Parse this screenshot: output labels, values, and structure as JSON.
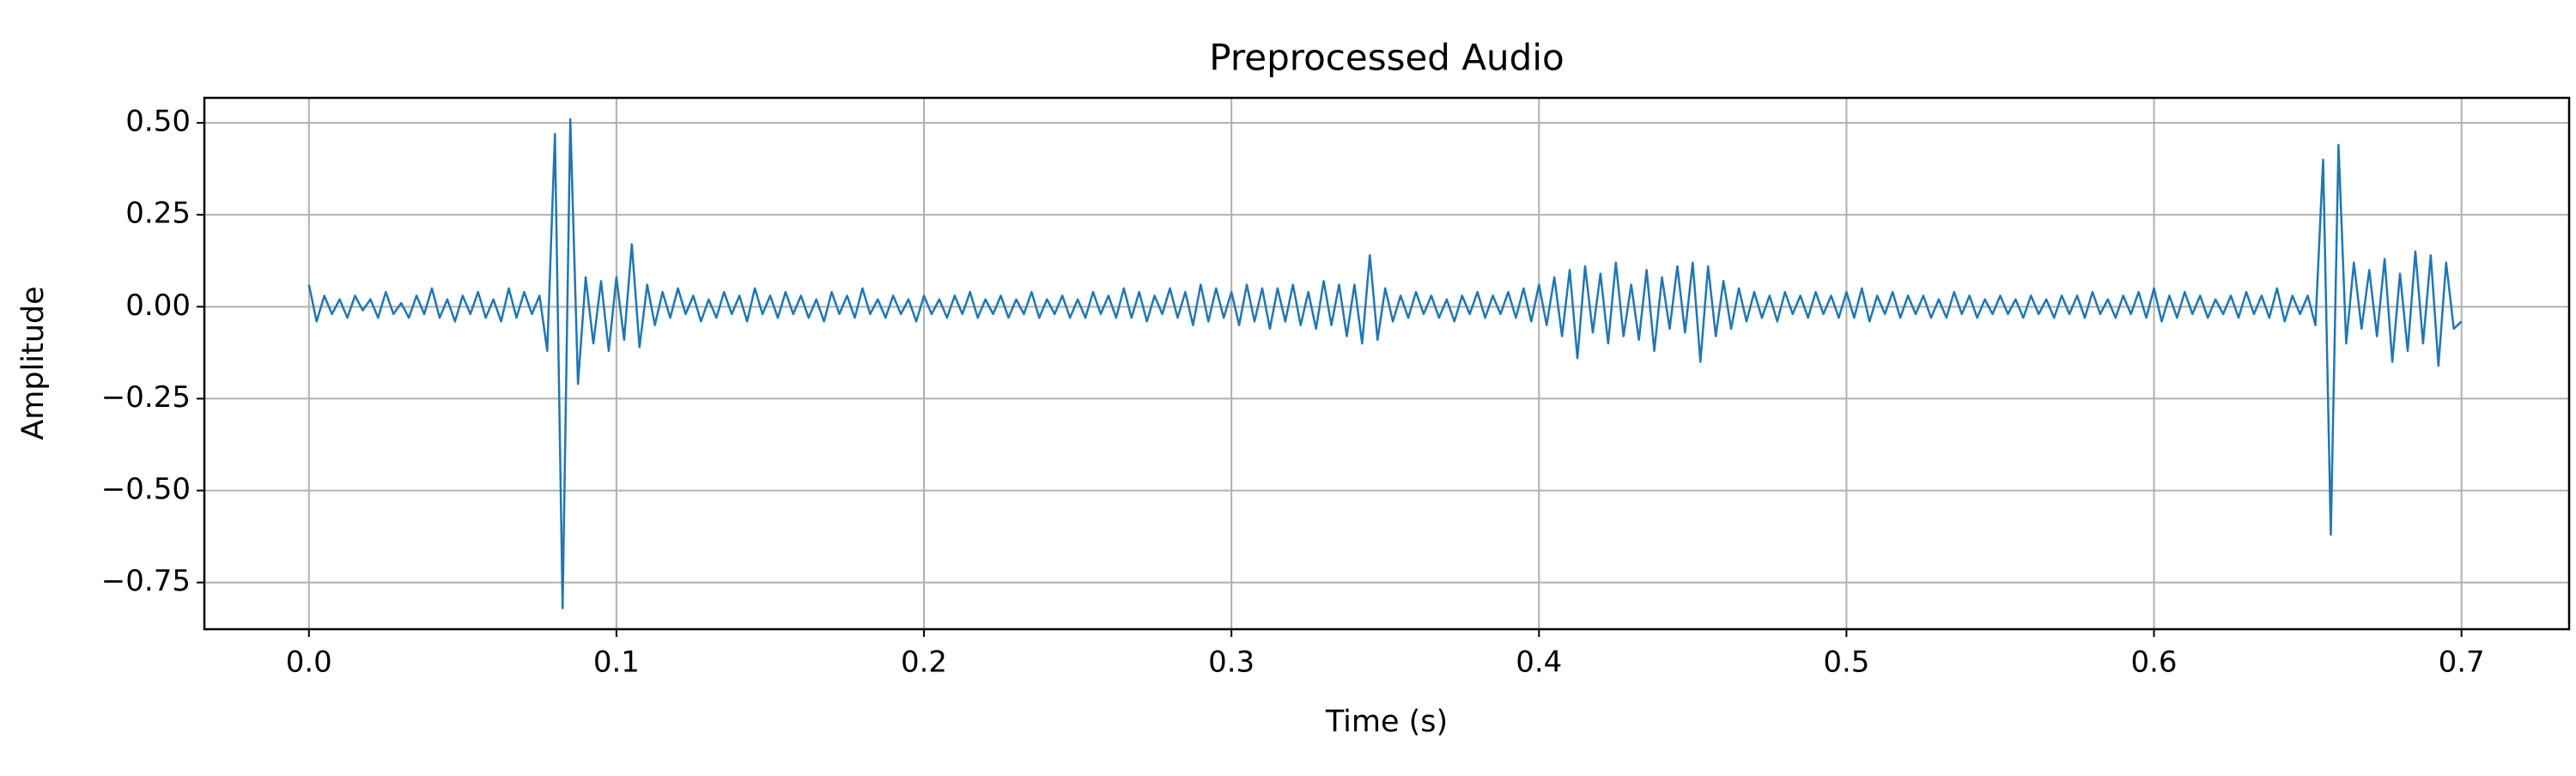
{
  "chart_data": {
    "type": "line",
    "title": "Preprocessed Audio",
    "x_label": "Time (s)",
    "y_label": "Amplitude",
    "color": "#1f77b4",
    "grid": true,
    "xlim": [
      -0.034,
      0.735
    ],
    "ylim": [
      -0.877,
      0.568
    ],
    "xticks": [
      {
        "value": 0,
        "label": "0.0"
      },
      0.1,
      0.2,
      0.3,
      0.4,
      0.5,
      0.6,
      0.7
    ],
    "yticks": [
      {
        "value": -0.75,
        "label": "−0.75"
      },
      {
        "value": -0.5,
        "label": "−0.50"
      },
      {
        "value": -0.25,
        "label": "−0.25"
      },
      {
        "value": 0,
        "label": "0.00"
      },
      {
        "value": 0.25,
        "label": "0.25"
      },
      {
        "value": 0.5,
        "label": "0.50"
      }
    ],
    "x": [
      0,
      0.0025,
      0.005,
      0.0075,
      0.01,
      0.0125,
      0.015,
      0.0175,
      0.02,
      0.0225,
      0.025,
      0.0275,
      0.03,
      0.0325,
      0.035,
      0.0375,
      0.04,
      0.0425,
      0.045,
      0.0475,
      0.05,
      0.0525,
      0.055,
      0.0575,
      0.06,
      0.0625,
      0.065,
      0.0675,
      0.07,
      0.0725,
      0.075,
      0.0775,
      0.08,
      0.0825,
      0.085,
      0.0875,
      0.09,
      0.0925,
      0.095,
      0.0975,
      0.1,
      0.1025,
      0.105,
      0.1075,
      0.11,
      0.1125,
      0.115,
      0.1175,
      0.12,
      0.1225,
      0.125,
      0.1275,
      0.13,
      0.1325,
      0.135,
      0.1375,
      0.14,
      0.1425,
      0.145,
      0.1475,
      0.15,
      0.1525,
      0.155,
      0.1575,
      0.16,
      0.1625,
      0.165,
      0.1675,
      0.17,
      0.1725,
      0.175,
      0.1775,
      0.18,
      0.1825,
      0.185,
      0.1875,
      0.19,
      0.1925,
      0.195,
      0.1975,
      0.2,
      0.2025,
      0.205,
      0.2075,
      0.21,
      0.2125,
      0.215,
      0.2175,
      0.22,
      0.2225,
      0.225,
      0.2275,
      0.23,
      0.2325,
      0.235,
      0.2375,
      0.24,
      0.2425,
      0.245,
      0.2475,
      0.25,
      0.2525,
      0.255,
      0.2575,
      0.26,
      0.2625,
      0.265,
      0.2675,
      0.27,
      0.2725,
      0.275,
      0.2775,
      0.28,
      0.2825,
      0.285,
      0.2875,
      0.29,
      0.2925,
      0.295,
      0.2975,
      0.3,
      0.3025,
      0.305,
      0.3075,
      0.31,
      0.3125,
      0.315,
      0.3175,
      0.32,
      0.3225,
      0.325,
      0.3275,
      0.33,
      0.3325,
      0.335,
      0.3375,
      0.34,
      0.3425,
      0.345,
      0.3475,
      0.35,
      0.3525,
      0.355,
      0.3575,
      0.36,
      0.3625,
      0.365,
      0.3675,
      0.37,
      0.3725,
      0.375,
      0.3775,
      0.38,
      0.3825,
      0.385,
      0.3875,
      0.39,
      0.3925,
      0.395,
      0.3975,
      0.4,
      0.4025,
      0.405,
      0.4075,
      0.41,
      0.4125,
      0.415,
      0.4175,
      0.42,
      0.4225,
      0.425,
      0.4275,
      0.43,
      0.4325,
      0.435,
      0.4375,
      0.44,
      0.4425,
      0.445,
      0.4475,
      0.45,
      0.4525,
      0.455,
      0.4575,
      0.46,
      0.4625,
      0.465,
      0.4675,
      0.47,
      0.4725,
      0.475,
      0.4775,
      0.48,
      0.4825,
      0.485,
      0.4875,
      0.49,
      0.4925,
      0.495,
      0.4975,
      0.5,
      0.5025,
      0.505,
      0.5075,
      0.51,
      0.5125,
      0.515,
      0.5175,
      0.52,
      0.5225,
      0.525,
      0.5275,
      0.53,
      0.5325,
      0.535,
      0.5375,
      0.54,
      0.5425,
      0.545,
      0.5475,
      0.55,
      0.5525,
      0.555,
      0.5575,
      0.56,
      0.5625,
      0.565,
      0.5675,
      0.57,
      0.5725,
      0.575,
      0.5775,
      0.58,
      0.5825,
      0.585,
      0.5875,
      0.59,
      0.5925,
      0.595,
      0.5975,
      0.6,
      0.6025,
      0.605,
      0.6075,
      0.61,
      0.6125,
      0.615,
      0.6175,
      0.62,
      0.6225,
      0.625,
      0.6275,
      0.63,
      0.6325,
      0.635,
      0.6375,
      0.64,
      0.6425,
      0.645,
      0.6475,
      0.65,
      0.6525,
      0.655,
      0.6575,
      0.66,
      0.6625,
      0.665,
      0.6675,
      0.67,
      0.6725,
      0.675,
      0.6775,
      0.68,
      0.6825,
      0.685,
      0.6875,
      0.69,
      0.6925,
      0.695,
      0.6975,
      0.7
    ],
    "values": [
      0.06,
      -0.04,
      0.03,
      -0.02,
      0.02,
      -0.03,
      0.03,
      -0.01,
      0.02,
      -0.03,
      0.04,
      -0.02,
      0.01,
      -0.03,
      0.03,
      -0.02,
      0.05,
      -0.03,
      0.02,
      -0.04,
      0.03,
      -0.02,
      0.04,
      -0.03,
      0.02,
      -0.04,
      0.05,
      -0.03,
      0.04,
      -0.02,
      0.03,
      -0.12,
      0.47,
      -0.82,
      0.51,
      -0.21,
      0.08,
      -0.1,
      0.07,
      -0.12,
      0.08,
      -0.09,
      0.17,
      -0.11,
      0.06,
      -0.05,
      0.04,
      -0.03,
      0.05,
      -0.02,
      0.03,
      -0.04,
      0.02,
      -0.03,
      0.04,
      -0.02,
      0.03,
      -0.04,
      0.05,
      -0.02,
      0.03,
      -0.03,
      0.04,
      -0.02,
      0.03,
      -0.03,
      0.02,
      -0.04,
      0.04,
      -0.02,
      0.03,
      -0.03,
      0.05,
      -0.02,
      0.02,
      -0.03,
      0.03,
      -0.02,
      0.02,
      -0.04,
      0.03,
      -0.02,
      0.02,
      -0.03,
      0.03,
      -0.02,
      0.04,
      -0.03,
      0.02,
      -0.02,
      0.03,
      -0.03,
      0.02,
      -0.02,
      0.04,
      -0.03,
      0.02,
      -0.02,
      0.03,
      -0.03,
      0.02,
      -0.03,
      0.04,
      -0.02,
      0.03,
      -0.03,
      0.05,
      -0.03,
      0.04,
      -0.04,
      0.03,
      -0.02,
      0.05,
      -0.03,
      0.04,
      -0.05,
      0.06,
      -0.04,
      0.05,
      -0.03,
      0.04,
      -0.05,
      0.06,
      -0.04,
      0.05,
      -0.06,
      0.05,
      -0.04,
      0.06,
      -0.05,
      0.04,
      -0.06,
      0.07,
      -0.05,
      0.06,
      -0.08,
      0.06,
      -0.1,
      0.14,
      -0.09,
      0.05,
      -0.04,
      0.03,
      -0.03,
      0.04,
      -0.02,
      0.03,
      -0.03,
      0.02,
      -0.04,
      0.03,
      -0.02,
      0.04,
      -0.03,
      0.03,
      -0.02,
      0.04,
      -0.03,
      0.05,
      -0.04,
      0.06,
      -0.05,
      0.08,
      -0.08,
      0.1,
      -0.14,
      0.11,
      -0.07,
      0.09,
      -0.1,
      0.12,
      -0.08,
      0.06,
      -0.09,
      0.1,
      -0.12,
      0.08,
      -0.06,
      0.11,
      -0.07,
      0.12,
      -0.15,
      0.11,
      -0.08,
      0.07,
      -0.06,
      0.05,
      -0.04,
      0.04,
      -0.03,
      0.03,
      -0.04,
      0.04,
      -0.02,
      0.03,
      -0.03,
      0.04,
      -0.02,
      0.03,
      -0.03,
      0.04,
      -0.03,
      0.05,
      -0.04,
      0.03,
      -0.02,
      0.04,
      -0.03,
      0.03,
      -0.02,
      0.03,
      -0.03,
      0.02,
      -0.03,
      0.04,
      -0.02,
      0.03,
      -0.03,
      0.02,
      -0.02,
      0.03,
      -0.02,
      0.02,
      -0.03,
      0.03,
      -0.02,
      0.02,
      -0.03,
      0.03,
      -0.02,
      0.03,
      -0.03,
      0.04,
      -0.02,
      0.02,
      -0.03,
      0.03,
      -0.02,
      0.04,
      -0.03,
      0.05,
      -0.04,
      0.03,
      -0.03,
      0.04,
      -0.02,
      0.03,
      -0.03,
      0.02,
      -0.02,
      0.03,
      -0.03,
      0.04,
      -0.02,
      0.03,
      -0.03,
      0.05,
      -0.04,
      0.03,
      -0.02,
      0.03,
      -0.05,
      0.4,
      -0.62,
      0.44,
      -0.1,
      0.12,
      -0.06,
      0.1,
      -0.08,
      0.13,
      -0.15,
      0.09,
      -0.12,
      0.15,
      -0.1,
      0.14,
      -0.16,
      0.12,
      -0.06,
      -0.04
    ]
  }
}
